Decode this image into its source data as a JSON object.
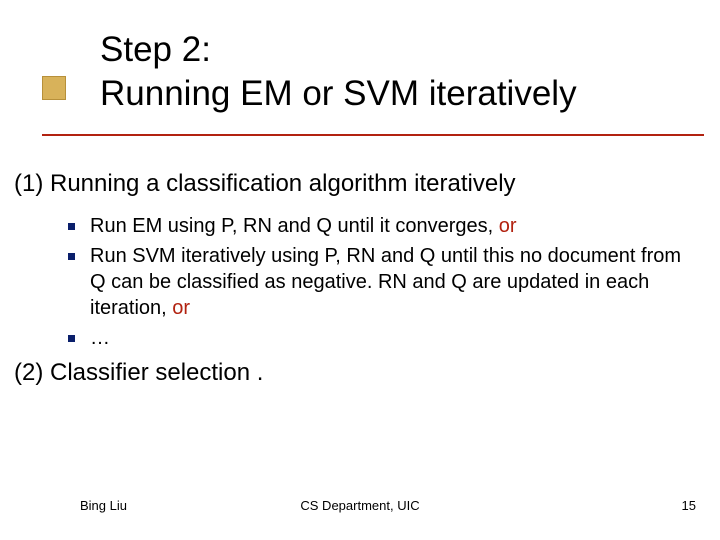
{
  "colors": {
    "title_text": "#000000",
    "body_text": "#000000",
    "accent_text": "#b22210",
    "underline": "#b22210",
    "accent_square_fill": "#d8b25a",
    "accent_square_stroke": "#b7903a",
    "bullet": "#0a1f6b",
    "background": "#ffffff"
  },
  "fonts": {
    "family": "Verdana",
    "title_size_pt": 35,
    "h1_size_pt": 24,
    "bullet_size_pt": 20,
    "footer_size_pt": 13
  },
  "title": {
    "line1": "Step 2:",
    "line2": "Running EM or SVM iteratively"
  },
  "sections": {
    "s1_heading": "(1) Running a classification algorithm iteratively",
    "bullets": [
      {
        "main": "Run EM using P, RN and Q until it converges, ",
        "accent": "or"
      },
      {
        "main": "Run SVM iteratively using P, RN and Q until this no document from Q can be classified as negative. RN and Q are updated in each iteration, ",
        "accent": "or"
      },
      {
        "main": "…",
        "accent": ""
      }
    ],
    "s2_heading": "(2) Classifier selection ."
  },
  "footer": {
    "left": "Bing Liu",
    "center": "CS Department, UIC",
    "page": "15"
  }
}
